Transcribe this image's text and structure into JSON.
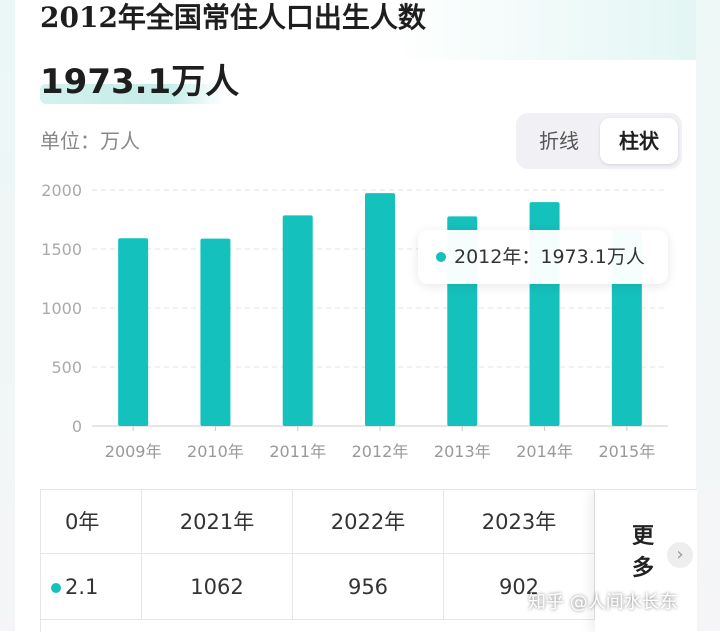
{
  "header": {
    "title": "2012年全国常住人口出生人数",
    "value": "1973.1万人"
  },
  "unit_label": "单位：万人",
  "toggle": {
    "line_label": "折线",
    "bar_label": "柱状",
    "active": "柱状"
  },
  "tooltip": {
    "text": "2012年：1973.1万人"
  },
  "colors": {
    "bar": "#14c1bc",
    "grid": "#e3e3e3",
    "tick": "#999999"
  },
  "chart_data": {
    "type": "bar",
    "categories": [
      "2009年",
      "2010年",
      "2011年",
      "2012年",
      "2013年",
      "2014年",
      "2015年"
    ],
    "values": [
      1591,
      1588,
      1785,
      1973.1,
      1776,
      1897,
      1655
    ],
    "yticks": [
      0,
      500,
      1000,
      1500,
      2000
    ],
    "ylim": [
      0,
      2000
    ],
    "grid": true,
    "title": "",
    "xlabel": "",
    "ylabel": "",
    "unit": "单位：万人"
  },
  "table": {
    "headers": [
      "0年",
      "2021年",
      "2022年",
      "2023年"
    ],
    "values": [
      "2.1",
      "1062",
      "956",
      "902"
    ],
    "more_label": "更多",
    "more_icon": "chevron-right-icon"
  },
  "watermark": "知乎 @人间水长东"
}
